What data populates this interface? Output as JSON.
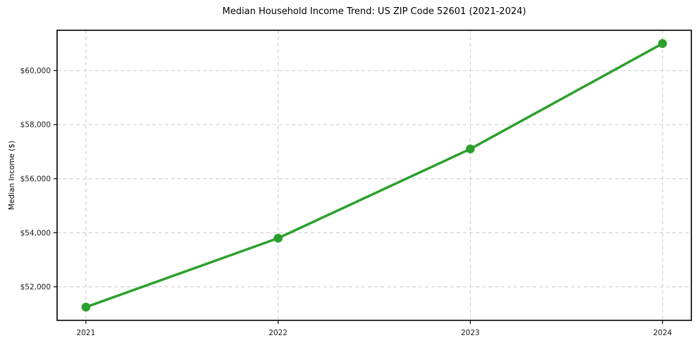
{
  "chart_data": {
    "type": "line",
    "title": "Median Household Income Trend: US ZIP Code 52601 (2021-2024)",
    "xlabel": "",
    "ylabel": "Median Income ($)",
    "x": [
      2021,
      2022,
      2023,
      2024
    ],
    "series": [
      {
        "name": "Median Income",
        "values": [
          51250,
          53800,
          57100,
          61000
        ]
      }
    ],
    "xticks": [
      2021,
      2022,
      2023,
      2024
    ],
    "xtick_labels": [
      "2021",
      "2022",
      "2023",
      "2024"
    ],
    "yticks": [
      52000,
      54000,
      56000,
      58000,
      60000
    ],
    "ytick_labels": [
      "$52,000",
      "$54,000",
      "$56,000",
      "$58,000",
      "$60,000"
    ],
    "xlim": [
      2020.85,
      2024.15
    ],
    "ylim": [
      50760,
      61490
    ],
    "grid": true,
    "grid_style": "dashed",
    "legend": "none",
    "marker": "circle",
    "line_color": "#2ca02c",
    "grid_color": "#c9c9c9",
    "axis_color": "#000000",
    "tick_label_color": "#1a1a1a",
    "background_color": "#ffffff"
  }
}
